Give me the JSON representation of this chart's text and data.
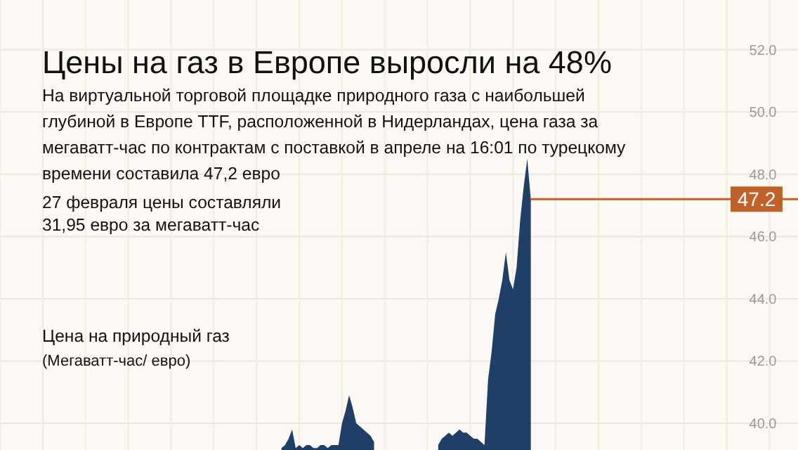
{
  "chart_data": {
    "type": "area",
    "title": "Цены на газ в Европе выросли на 48%",
    "subtitle": "На виртуальной торговой площадке природного газа с наибольшей\nглубиной в Европе TTF, расположенной в Нидерландах, цена газа за\nмегаватт-час по контрактам с поставкой в апреле на 16:01 по турецкому\nвремени составила 47,2 евро",
    "ylabel": "Цена на природный газ\n(Мегаватт-час/ евро)",
    "annotations": [
      "27 февраля цены составляли\n31,95 евро за мегаватт-час"
    ],
    "categories": [
      null,
      null,
      null,
      null,
      null,
      null,
      null,
      null,
      null,
      null,
      null,
      null,
      null,
      null,
      null,
      null,
      null,
      null,
      null,
      null,
      null,
      null,
      null,
      null,
      null,
      null,
      null,
      null,
      null,
      null,
      null,
      null,
      null,
      null,
      null,
      null,
      null,
      null,
      null,
      null,
      null,
      null,
      null,
      null,
      null,
      null,
      null,
      null,
      null,
      null,
      null,
      null,
      null,
      null,
      null,
      null,
      null,
      null,
      null,
      null,
      null,
      null,
      null,
      null,
      null,
      null,
      null,
      null,
      null,
      null,
      null,
      null,
      null,
      null,
      null,
      null,
      null,
      null,
      null,
      null,
      null,
      null,
      null,
      null,
      null,
      null,
      null,
      null,
      null,
      null,
      null,
      null,
      null,
      null,
      null,
      null,
      null,
      null,
      null,
      null,
      null,
      null,
      null,
      null,
      null,
      null,
      null,
      null,
      null,
      null,
      null,
      null,
      null,
      null,
      null,
      null,
      null,
      null,
      null,
      null,
      null,
      null,
      null,
      null,
      null,
      null,
      null,
      null,
      null,
      null,
      null,
      null,
      null,
      null,
      null,
      null,
      null,
      null,
      null,
      null,
      null,
      null,
      null,
      null,
      null,
      null,
      null,
      null,
      null,
      null,
      null,
      null,
      null,
      null,
      null,
      null,
      null,
      null,
      null,
      null,
      null,
      null,
      null,
      null,
      null,
      null,
      null,
      null,
      null,
      null,
      null,
      null,
      null,
      null,
      null,
      null,
      null,
      null,
      null,
      null,
      null,
      null,
      null,
      null,
      null,
      null,
      null,
      null,
      null,
      null,
      null,
      null,
      null,
      null,
      null,
      null,
      null,
      null,
      null,
      null,
      null,
      null,
      null,
      null,
      null,
      null,
      null,
      null,
      null,
      null,
      null,
      null,
      null,
      null,
      null,
      null,
      null,
      null,
      null,
      null,
      null,
      null,
      null,
      null,
      null
    ],
    "values": [
      null,
      null,
      null,
      null,
      null,
      null,
      null,
      null,
      null,
      null,
      null,
      null,
      null,
      null,
      null,
      null,
      null,
      null,
      null,
      null,
      null,
      null,
      null,
      null,
      null,
      null,
      null,
      null,
      null,
      null,
      null,
      null,
      null,
      null,
      null,
      null,
      null,
      null,
      null,
      null,
      null,
      null,
      null,
      null,
      null,
      null,
      null,
      null,
      null,
      null,
      null,
      null,
      null,
      null,
      null,
      null,
      null,
      null,
      null,
      null,
      null,
      null,
      null,
      null,
      null,
      null,
      null,
      null,
      null,
      null,
      null,
      null,
      null,
      null,
      null,
      null,
      null,
      null,
      null,
      39.2,
      39.3,
      39.5,
      39.8,
      39.2,
      39.3,
      39.2,
      39.3,
      39.3,
      39.2,
      39.2,
      39.3,
      39.3,
      39.2,
      39.3,
      39.3,
      39.3,
      40.0,
      40.4,
      40.9,
      40.5,
      40.0,
      39.9,
      39.8,
      39.7,
      39.6,
      39.4,
      null,
      null,
      null,
      null,
      null,
      null,
      null,
      null,
      null,
      null,
      null,
      null,
      null,
      null,
      null,
      null,
      null,
      39.3,
      39.5,
      39.6,
      39.7,
      39.6,
      39.7,
      39.8,
      39.7,
      39.7,
      39.6,
      39.5,
      39.5,
      39.4,
      39.3,
      41.4,
      42.3,
      43.5,
      44.0,
      44.6,
      45.5,
      44.6,
      44.3,
      45.0,
      46.5,
      47.6,
      48.5,
      47.2,
      null,
      null,
      null,
      null,
      null,
      null,
      null,
      null,
      null,
      null,
      null,
      null,
      null,
      null,
      null,
      null,
      null,
      null,
      null,
      null,
      null,
      null,
      null,
      null,
      null,
      null,
      null,
      null,
      null,
      null,
      null,
      null,
      null,
      null,
      null,
      null,
      null,
      null,
      null,
      null,
      null,
      null,
      null,
      null,
      null,
      null,
      null,
      null,
      null,
      null,
      null,
      null,
      null,
      null,
      null,
      null,
      null,
      null,
      null,
      null,
      null,
      null,
      null,
      null,
      null,
      null,
      null,
      null,
      null,
      null,
      null,
      null,
      null,
      null,
      null
    ],
    "color": "#1f3f66",
    "ylim": [
      39.14,
      53.6
    ],
    "yticks": [
      {
        "value": 40,
        "label": "40.0"
      },
      {
        "value": 42,
        "label": "42.0"
      },
      {
        "value": 44,
        "label": "44.0"
      },
      {
        "value": 46,
        "label": "46.0"
      },
      {
        "value": 48,
        "label": "48.0"
      },
      {
        "value": 50,
        "label": "50.0"
      },
      {
        "value": 52,
        "label": "52.0"
      }
    ],
    "ref_lines": [
      {
        "axis": "y",
        "value": 47.2,
        "label": "47.2",
        "color": "#c0622a"
      }
    ],
    "grid": true,
    "tick_labels": "y"
  }
}
